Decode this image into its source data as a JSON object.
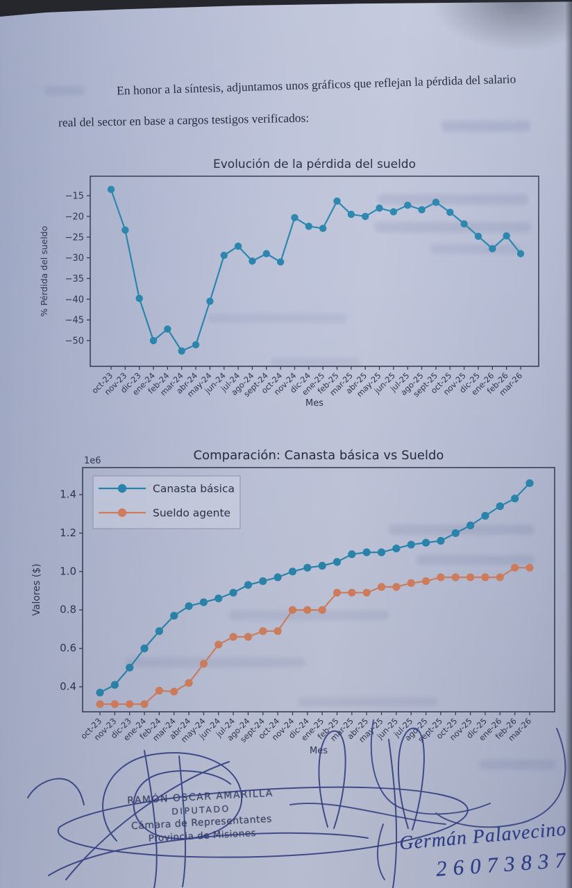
{
  "document": {
    "paragraph_line1": "En honor a la síntesis, adjuntamos unos gráficos que reflejan la pérdida del salario",
    "paragraph_line2": "real del sector en base a cargos testigos verificados:"
  },
  "chart_data": [
    {
      "type": "line",
      "title": "Evolución de la pérdida del sueldo",
      "xlabel": "Mes",
      "ylabel": "% Pérdida del sueldo",
      "grid": false,
      "legend": null,
      "ylim": [
        -56.2,
        -10.3
      ],
      "yticks": [
        -15,
        -20,
        -25,
        -30,
        -35,
        -40,
        -45,
        -50
      ],
      "ytick_labels": [
        "−15",
        "−20",
        "−25",
        "−30",
        "−35",
        "−40",
        "−45",
        "−50"
      ],
      "categories": [
        "oct-23",
        "nov-23",
        "dic-23",
        "ene-24",
        "feb-24",
        "mar-24",
        "abr-24",
        "may-24",
        "jun-24",
        "jul-24",
        "ago-24",
        "sept-24",
        "oct-24",
        "nov-24",
        "dic-24",
        "ene-25",
        "feb-25",
        "mar-25",
        "abr-25",
        "may-25",
        "jun-25",
        "jul-25",
        "ago-25",
        "sept-25",
        "oct-25",
        "nov-25",
        "dic-25",
        "ene-26",
        "feb-26",
        "mar-26"
      ],
      "series": [
        {
          "name": "% Pérdida del sueldo",
          "color": "#2b86ae",
          "values": [
            -13.5,
            -23.3,
            -39.8,
            -50.0,
            -47.2,
            -52.5,
            -51.0,
            -40.5,
            -29.4,
            -27.2,
            -30.8,
            -29.0,
            -31.0,
            -20.3,
            -22.4,
            -22.9,
            -16.3,
            -19.5,
            -20.0,
            -18.0,
            -18.9,
            -17.3,
            -18.4,
            -16.6,
            -19.0,
            -21.8,
            -24.8,
            -27.8,
            -24.7,
            -29.0
          ]
        }
      ]
    },
    {
      "type": "line",
      "title": "Comparación: Canasta básica vs Sueldo",
      "xlabel": "Mes",
      "ylabel": "Valores ($)",
      "offset_text": "1e6",
      "grid": false,
      "legend": {
        "position": "upper left"
      },
      "ylim": [
        0.27,
        1.541
      ],
      "yticks": [
        1.4,
        1.2,
        1.0,
        0.8,
        0.6,
        0.4
      ],
      "ytick_labels": [
        "1.4",
        "1.2",
        "1.0",
        "0.8",
        "0.6",
        "0.4"
      ],
      "categories": [
        "oct-23",
        "nov-23",
        "dic-23",
        "ene-24",
        "feb-24",
        "mar-24",
        "abr-24",
        "may-24",
        "jun-24",
        "jul-24",
        "ago-24",
        "sept-24",
        "oct-24",
        "nov-24",
        "dic-24",
        "ene-25",
        "feb-25",
        "mar-25",
        "abr-25",
        "may-25",
        "jun-25",
        "jul-25",
        "ago-25",
        "sept-25",
        "oct-25",
        "nov-25",
        "dic-25",
        "ene-26",
        "feb-26",
        "mar-26"
      ],
      "series": [
        {
          "name": "Canasta básica",
          "color": "#2b86ae",
          "values": [
            0.37,
            0.41,
            0.5,
            0.6,
            0.69,
            0.77,
            0.82,
            0.84,
            0.86,
            0.89,
            0.93,
            0.95,
            0.97,
            1.0,
            1.02,
            1.03,
            1.05,
            1.09,
            1.1,
            1.1,
            1.12,
            1.14,
            1.15,
            1.16,
            1.2,
            1.24,
            1.29,
            1.34,
            1.38,
            1.46
          ]
        },
        {
          "name": "Sueldo agente",
          "color": "#d2805f",
          "values": [
            0.31,
            0.31,
            0.31,
            0.31,
            0.38,
            0.375,
            0.42,
            0.52,
            0.62,
            0.66,
            0.66,
            0.69,
            0.69,
            0.8,
            0.8,
            0.8,
            0.89,
            0.89,
            0.89,
            0.92,
            0.92,
            0.94,
            0.95,
            0.97,
            0.97,
            0.97,
            0.97,
            0.97,
            1.02,
            1.02
          ]
        }
      ]
    }
  ],
  "stamp": {
    "name": "RAMÓN OSCAR AMARILLA",
    "role": "DIPUTADO",
    "org": "Cámara de Representantes",
    "region": "Provincia de Misiones"
  },
  "handwriting": {
    "name": "Germán Palavecino",
    "number": "26073837"
  },
  "colors": {
    "paper": "#b7bdd4",
    "ink_blue": "#2c3a80",
    "series_blue": "#2b86ae",
    "series_orange": "#d2805f",
    "chart_text": "#2f3650",
    "spine": "#3a4157"
  }
}
